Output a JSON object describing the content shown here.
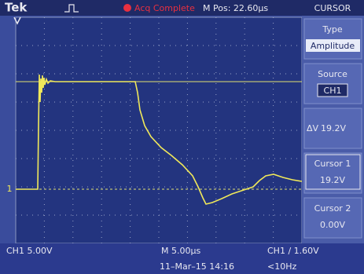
{
  "header": {
    "brand": "Tek",
    "status": "Acq Complete",
    "position": "M Pos: 22.60µs",
    "menu_title": "CURSOR"
  },
  "menu": {
    "items": [
      {
        "label": "Type",
        "value": "Amplitude"
      },
      {
        "label": "Source",
        "value": "CH1"
      },
      {
        "label": "ΔV",
        "value": "19.2V"
      },
      {
        "label": "Cursor 1",
        "value": "19.2V"
      },
      {
        "label": "Cursor 2",
        "value": "0.00V"
      }
    ]
  },
  "screen": {
    "channel_marker": "1"
  },
  "footer": {
    "channel_scale": "CH1  5.00V",
    "time_scale": "M 5.00µs",
    "trigger": "CH1 ∕ 1.60V",
    "date": "11–Mar–15 14:16",
    "frequency": "<10Hz"
  }
}
